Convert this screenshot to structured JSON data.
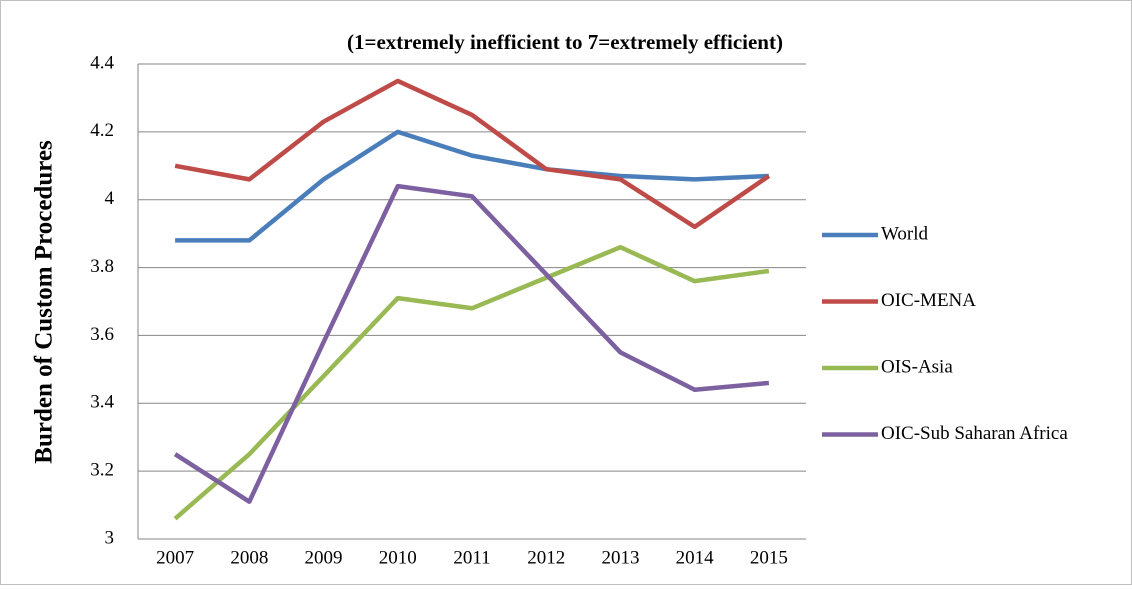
{
  "chart_data": {
    "type": "line",
    "title": "(1=extremely inefficient to 7=extremely efficient)",
    "y_label": "Burden of Custom Procedures",
    "categories": [
      "2007",
      "2008",
      "2009",
      "2010",
      "2011",
      "2012",
      "2013",
      "2014",
      "2015"
    ],
    "series": [
      {
        "name": "World",
        "color": "#4a7ebb",
        "values": [
          3.88,
          3.88,
          4.06,
          4.2,
          4.13,
          4.09,
          4.07,
          4.06,
          4.07
        ]
      },
      {
        "name": "OIC-MENA",
        "color": "#be4b48",
        "values": [
          4.1,
          4.06,
          4.23,
          4.35,
          4.25,
          4.09,
          4.06,
          3.92,
          4.07
        ]
      },
      {
        "name": "OIS-Asia",
        "color": "#98b954",
        "values": [
          3.06,
          3.25,
          3.48,
          3.71,
          3.68,
          3.77,
          3.86,
          3.76,
          3.79
        ]
      },
      {
        "name": "OIC-Sub Saharan Africa",
        "color": "#7d60a0",
        "values": [
          3.25,
          3.11,
          3.58,
          4.04,
          4.01,
          3.78,
          3.55,
          3.44,
          3.46
        ]
      }
    ],
    "ylim": [
      3,
      4.4
    ],
    "yticks": [
      3,
      3.2,
      3.4,
      3.6,
      3.8,
      4,
      4.2,
      4.4
    ],
    "grid": true,
    "legend": "right"
  }
}
